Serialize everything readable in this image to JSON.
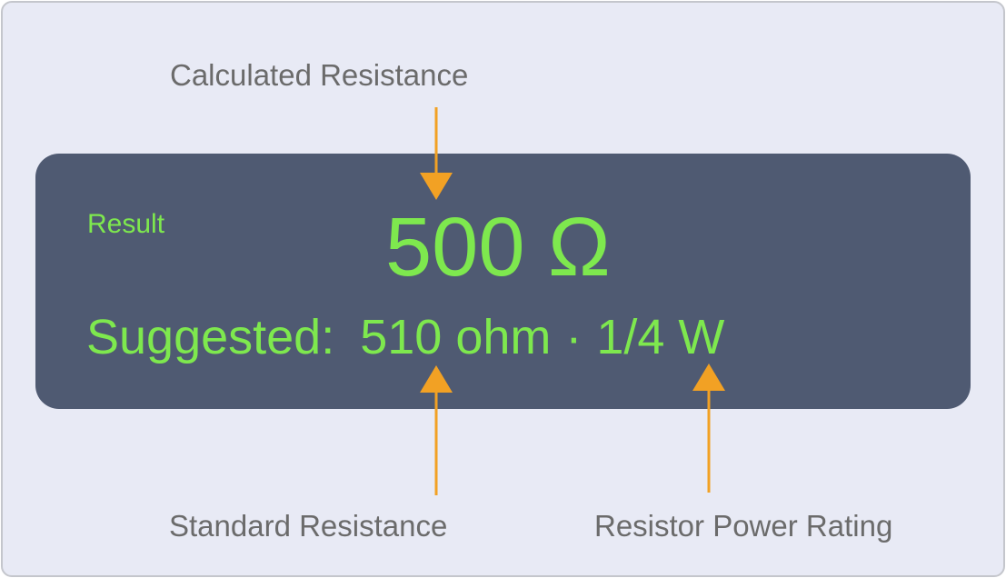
{
  "result": {
    "label": "Result",
    "value": "500 Ω",
    "suggested_label": "Suggested:",
    "suggested_resistance": "510 ohm",
    "separator": "·",
    "suggested_power": "1/4 W"
  },
  "annotations": {
    "calculated": "Calculated Resistance",
    "standard": "Standard Resistance",
    "power": "Resistor Power Rating"
  },
  "colors": {
    "background": "#e8eaf5",
    "panel": "#4f5a72",
    "value_text": "#7ee84e",
    "arrow": "#f2a124",
    "caption_text": "#6b6b6b"
  }
}
